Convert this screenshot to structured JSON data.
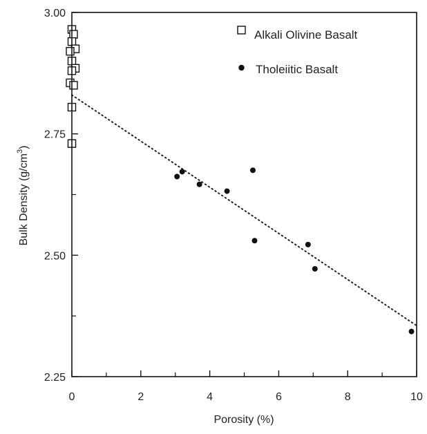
{
  "chart_data": {
    "type": "scatter",
    "title": "",
    "xlabel": "Porosity (%)",
    "ylabel_main": "Bulk Density (g/cm",
    "ylabel_sup": "3",
    "ylabel_close": ")",
    "xlim": [
      0,
      10
    ],
    "ylim": [
      2.25,
      3.0
    ],
    "x_ticks": [
      0,
      2,
      4,
      6,
      8,
      10
    ],
    "x_tick_labels": [
      "0",
      "2",
      "4",
      "6",
      "8",
      "10"
    ],
    "x_minor_ticks": [
      1,
      3,
      5,
      7,
      9
    ],
    "y_ticks": [
      2.25,
      2.5,
      2.75,
      3.0
    ],
    "y_tick_labels": [
      "2.25",
      "2.50",
      "2.75",
      "3.00"
    ],
    "y_minor_ticks": [
      2.375,
      2.625,
      2.875
    ],
    "grid": false,
    "legend_position": "top-right",
    "series": [
      {
        "name": "Alkali Olivine Basalt",
        "marker": "open-square",
        "x": [
          0.0,
          0.05,
          0.0,
          0.1,
          -0.05,
          0.0,
          0.1,
          0.0,
          -0.05,
          0.05,
          0.0,
          0.0
        ],
        "y": [
          2.965,
          2.955,
          2.94,
          2.925,
          2.92,
          2.9,
          2.885,
          2.88,
          2.855,
          2.85,
          2.805,
          2.73
        ]
      },
      {
        "name": "Tholeiitic Basalt",
        "marker": "filled-circle",
        "x": [
          3.05,
          3.2,
          3.7,
          4.5,
          5.25,
          5.3,
          6.85,
          7.05,
          9.85
        ],
        "y": [
          2.662,
          2.672,
          2.646,
          2.632,
          2.675,
          2.53,
          2.522,
          2.472,
          2.343
        ]
      }
    ],
    "trendline": {
      "style": "dotted",
      "x": [
        0,
        10
      ],
      "y": [
        2.83,
        2.355
      ]
    }
  }
}
